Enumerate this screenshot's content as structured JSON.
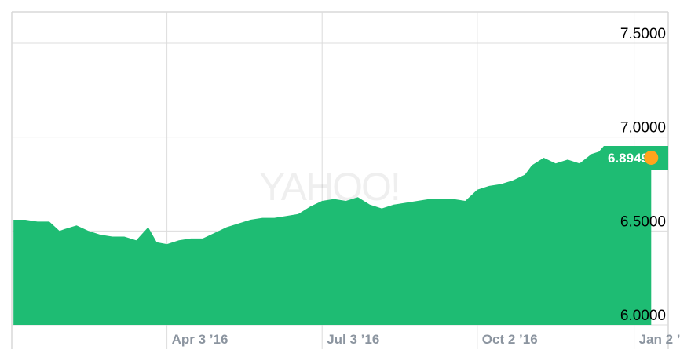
{
  "chart_data": {
    "type": "area",
    "watermark": "YAHOO!",
    "color": "#1ebc73",
    "marker_color": "#ffa41c",
    "grid": true,
    "ylim": [
      6.0,
      7.5
    ],
    "yticks": [
      {
        "value": 7.5,
        "label": "7.5000"
      },
      {
        "value": 7.0,
        "label": "7.0000"
      },
      {
        "value": 6.5,
        "label": "6.5000"
      },
      {
        "value": 6.0,
        "label": "6.0000"
      }
    ],
    "xlim": [
      "2016-01-03",
      "2017-01-22"
    ],
    "xticks": [
      {
        "date": "2016-04-03",
        "label": "Apr 3 ’16"
      },
      {
        "date": "2016-07-03",
        "label": "Jul 3 ’16"
      },
      {
        "date": "2016-10-02",
        "label": "Oct 2 ’16"
      },
      {
        "date": "2017-01-02",
        "label": "Jan 2 ’17"
      }
    ],
    "last_value_label": "6.8949",
    "series": [
      {
        "x": [
          "2016-01-04",
          "2016-01-11",
          "2016-01-18",
          "2016-01-25",
          "2016-01-31",
          "2016-02-03",
          "2016-02-10",
          "2016-02-17",
          "2016-02-24",
          "2016-03-02",
          "2016-03-09",
          "2016-03-16",
          "2016-03-23",
          "2016-03-28",
          "2016-04-03",
          "2016-04-10",
          "2016-04-17",
          "2016-04-24",
          "2016-05-01",
          "2016-05-08",
          "2016-05-15",
          "2016-05-22",
          "2016-05-29",
          "2016-06-05",
          "2016-06-12",
          "2016-06-19",
          "2016-06-26",
          "2016-07-03",
          "2016-07-10",
          "2016-07-17",
          "2016-07-24",
          "2016-07-31",
          "2016-08-07",
          "2016-08-14",
          "2016-08-21",
          "2016-08-28",
          "2016-09-04",
          "2016-09-11",
          "2016-09-18",
          "2016-09-25",
          "2016-10-02",
          "2016-10-09",
          "2016-10-16",
          "2016-10-23",
          "2016-10-30",
          "2016-11-03",
          "2016-11-10",
          "2016-11-17",
          "2016-11-24",
          "2016-12-01",
          "2016-12-08",
          "2016-12-15",
          "2016-12-22",
          "2016-12-29",
          "2017-01-03",
          "2017-01-06",
          "2017-01-09",
          "2017-01-12"
        ],
        "y": [
          6.56,
          6.56,
          6.55,
          6.55,
          6.5,
          6.51,
          6.53,
          6.5,
          6.48,
          6.47,
          6.47,
          6.45,
          6.52,
          6.44,
          6.43,
          6.45,
          6.46,
          6.46,
          6.49,
          6.52,
          6.54,
          6.56,
          6.57,
          6.57,
          6.58,
          6.59,
          6.63,
          6.66,
          6.67,
          6.66,
          6.68,
          6.64,
          6.62,
          6.64,
          6.65,
          6.66,
          6.67,
          6.67,
          6.67,
          6.66,
          6.72,
          6.74,
          6.75,
          6.77,
          6.8,
          6.85,
          6.89,
          6.86,
          6.88,
          6.86,
          6.91,
          6.93,
          6.95,
          6.94,
          6.93,
          6.88,
          6.91,
          6.89
        ]
      }
    ]
  }
}
